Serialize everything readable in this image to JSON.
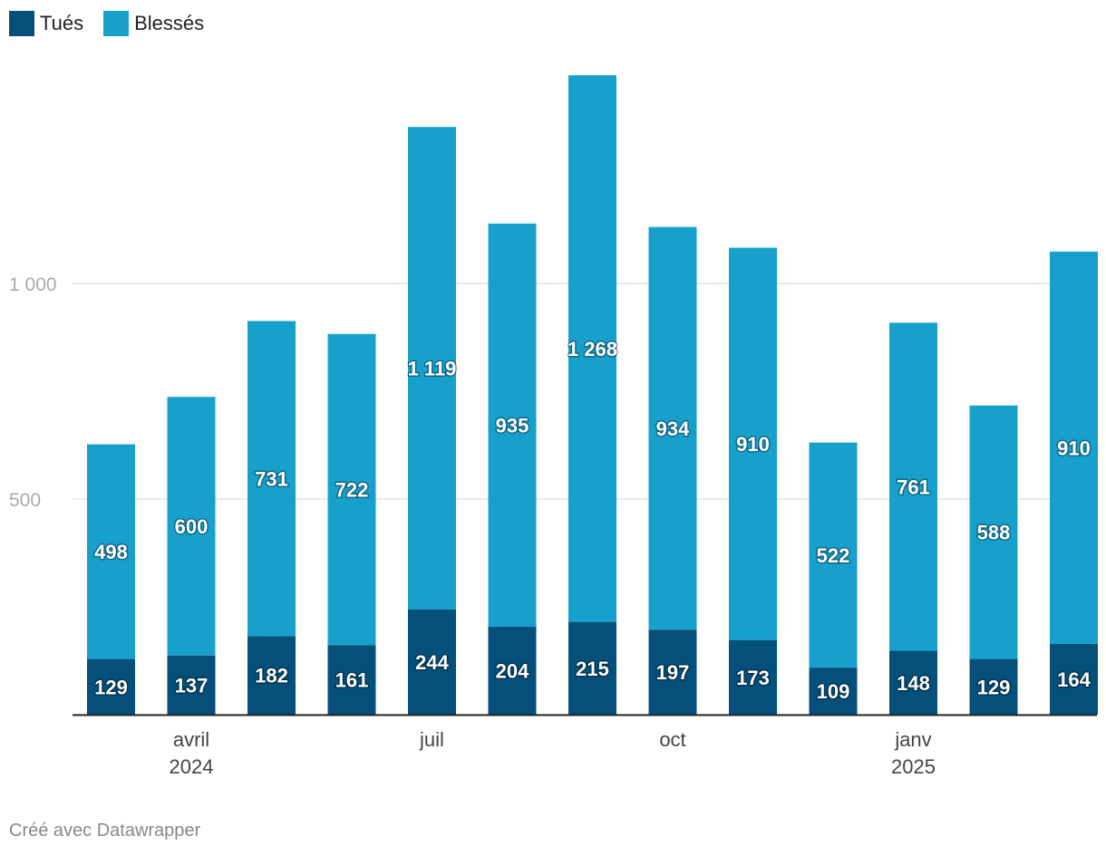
{
  "legend": {
    "killed_label": "Tués",
    "injured_label": "Blessés"
  },
  "footer": {
    "credit": "Créé avec Datawrapper"
  },
  "colors": {
    "killed": "#04507a",
    "injured": "#18a0cc",
    "grid": "#e2e2e2",
    "axis": "#222222",
    "tick_text": "#aaaaaa"
  },
  "chart_data": {
    "type": "bar",
    "stacked": true,
    "x_tick_labels": [
      {
        "index": 1,
        "lines": [
          "avril",
          "2024"
        ]
      },
      {
        "index": 4,
        "lines": [
          "juil"
        ]
      },
      {
        "index": 7,
        "lines": [
          "oct"
        ]
      },
      {
        "index": 10,
        "lines": [
          "janv",
          "2025"
        ]
      }
    ],
    "y_ticks": [
      {
        "value": 500,
        "label": "500"
      },
      {
        "value": 1000,
        "label": "1 000"
      }
    ],
    "ylim": [
      0,
      1500
    ],
    "grid": true,
    "legend_position": "top-left",
    "series": [
      {
        "name": "Tués",
        "values": [
          129,
          137,
          182,
          161,
          244,
          204,
          215,
          197,
          173,
          109,
          148,
          129,
          164
        ],
        "labels": [
          "129",
          "137",
          "182",
          "161",
          "244",
          "204",
          "215",
          "197",
          "173",
          "109",
          "148",
          "129",
          "164"
        ]
      },
      {
        "name": "Blessés",
        "values": [
          498,
          600,
          731,
          722,
          1119,
          935,
          1268,
          934,
          910,
          522,
          761,
          588,
          910
        ],
        "labels": [
          "498",
          "600",
          "731",
          "722",
          "1 119",
          "935",
          "1 268",
          "934",
          "910",
          "522",
          "761",
          "588",
          "910"
        ]
      }
    ]
  }
}
